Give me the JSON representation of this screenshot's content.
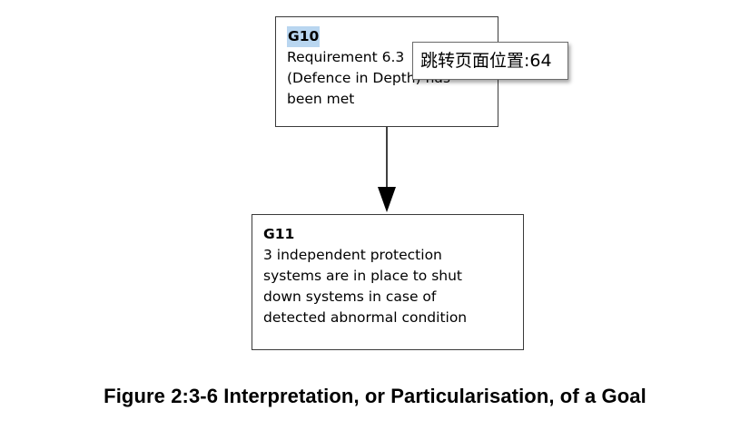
{
  "diagram": {
    "goals": [
      {
        "id": "G10",
        "text": "Requirement 6.3\n(Defence in Depth) has\nbeen met"
      },
      {
        "id": "G11",
        "text": "3 independent protection\nsystems are in place to shut\ndown systems in case of\ndetected abnormal condition"
      }
    ],
    "tooltip": "跳转页面位置:64",
    "caption": "Figure 2:3-6 Interpretation, or Particularisation, of a Goal"
  },
  "colors": {
    "border": "#3a3a3a",
    "selection_highlight": "#b9d6f0",
    "arrow": "#000000"
  }
}
